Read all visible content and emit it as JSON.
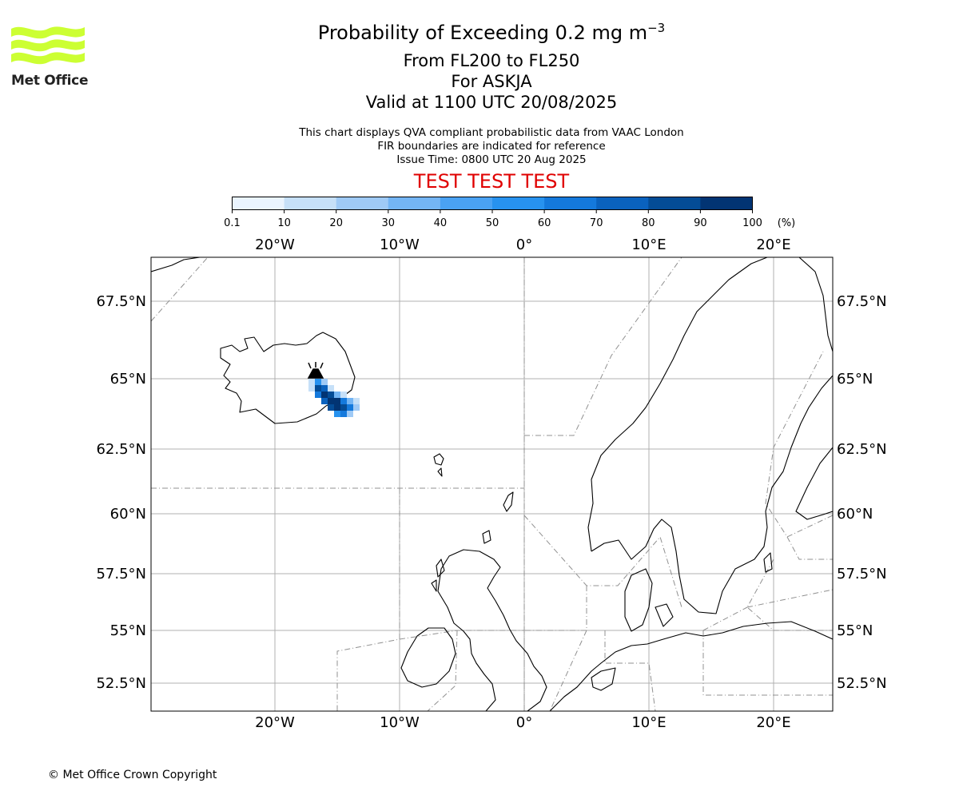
{
  "header": {
    "title_main": "Probability of Exceeding 0.2 mg m",
    "title_sup": "−3",
    "line2": "From FL200 to FL250",
    "line3": "For ASKJA",
    "line4": "Valid at 1100 UTC 20/08/2025",
    "info1": "This chart displays QVA compliant probabilistic data from VAAC London",
    "info2": "FIR boundaries are indicated for reference",
    "info3": "Issue Time: 0800 UTC 20 Aug 2025",
    "test_banner": "TEST TEST TEST",
    "test_color": "#e00000"
  },
  "logo": {
    "text": "Met Office",
    "color": "#ccff33"
  },
  "colorbar": {
    "ticks": [
      "0.1",
      "10",
      "20",
      "30",
      "40",
      "50",
      "60",
      "70",
      "80",
      "90",
      "100"
    ],
    "unit": "(%)",
    "colors": [
      "#eaf4fe",
      "#c6e0f8",
      "#9fcaf6",
      "#74b5f4",
      "#4aa2f3",
      "#2792ef",
      "#1479dc",
      "#0a62be",
      "#044c96",
      "#023473"
    ]
  },
  "map": {
    "lon_labels": [
      "20°W",
      "10°W",
      "0°",
      "10°E",
      "20°E"
    ],
    "lat_labels": [
      "67.5°N",
      "65°N",
      "62.5°N",
      "60°N",
      "57.5°N",
      "55°N",
      "52.5°N"
    ],
    "volcano": "ASKJA"
  },
  "footer": {
    "copyright": "© Met Office Crown Copyright"
  }
}
